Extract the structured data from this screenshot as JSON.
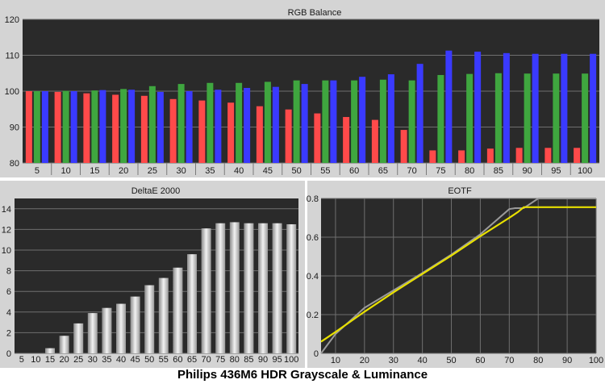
{
  "caption": "Philips 436M6 HDR Grayscale & Luminance",
  "colors": {
    "plot_bg": "#2a2a2a",
    "panel_bg": "#d4d4d4",
    "grid": "#6f6f6f",
    "red": "#ff4a4a",
    "green": "#3fa63f",
    "blue": "#3a3aff",
    "eotf_target": "#9a9a9a",
    "eotf_measured": "#e8e000"
  },
  "chart_data": [
    {
      "type": "bar",
      "title": "RGB Balance",
      "categories": [
        "5",
        "10",
        "15",
        "20",
        "25",
        "30",
        "35",
        "40",
        "45",
        "50",
        "55",
        "60",
        "65",
        "70",
        "75",
        "80",
        "85",
        "90",
        "95",
        "100"
      ],
      "ylim": [
        80,
        120
      ],
      "yticks": [
        80,
        90,
        100,
        110,
        120
      ],
      "series": [
        {
          "color": "red",
          "values": [
            100,
            99.8,
            99.4,
            99.0,
            98.7,
            97.8,
            97.4,
            96.8,
            95.8,
            94.9,
            93.8,
            92.8,
            92.0,
            89.2,
            83.5,
            83.5,
            84.0,
            84.2,
            84.2,
            84.2
          ]
        },
        {
          "color": "green",
          "values": [
            100,
            100.1,
            100.2,
            100.6,
            101.4,
            102.0,
            102.3,
            102.3,
            102.6,
            103.0,
            103.0,
            103.0,
            103.2,
            103.0,
            104.5,
            104.8,
            105.0,
            104.9,
            104.9,
            104.9
          ]
        },
        {
          "color": "blue",
          "values": [
            100,
            100.0,
            100.3,
            100.4,
            99.8,
            100.0,
            100.4,
            100.9,
            101.2,
            102.0,
            103.0,
            104.0,
            104.7,
            107.6,
            111.3,
            111.0,
            110.6,
            110.4,
            110.4,
            110.4
          ]
        }
      ]
    },
    {
      "type": "bar",
      "title": "DeltaE 2000",
      "categories": [
        "5",
        "10",
        "15",
        "20",
        "25",
        "30",
        "35",
        "40",
        "45",
        "50",
        "55",
        "60",
        "65",
        "70",
        "75",
        "80",
        "85",
        "90",
        "95",
        "100"
      ],
      "ylim": [
        0,
        15
      ],
      "yticks": [
        0,
        2,
        4,
        6,
        8,
        10,
        12,
        14
      ],
      "values": [
        0,
        0,
        0.5,
        1.7,
        2.9,
        3.9,
        4.4,
        4.8,
        5.5,
        6.6,
        7.3,
        8.3,
        9.6,
        12.1,
        12.6,
        12.7,
        12.6,
        12.6,
        12.6,
        12.5
      ]
    },
    {
      "type": "line",
      "title": "EOTF",
      "xlim": [
        5,
        100
      ],
      "ylim": [
        0,
        0.8
      ],
      "xticks": [
        10,
        20,
        30,
        40,
        50,
        60,
        70,
        80,
        90,
        100
      ],
      "yticks": [
        0,
        0.2,
        0.4,
        0.6,
        0.8
      ],
      "series": [
        {
          "color": "eotf_target",
          "x": [
            5,
            7,
            10,
            20,
            30,
            40,
            50,
            60,
            70,
            72,
            75,
            80,
            90,
            100
          ],
          "y": [
            0.0,
            0.04,
            0.1,
            0.235,
            0.325,
            0.415,
            0.51,
            0.615,
            0.745,
            0.75,
            0.75,
            0.8,
            0.8,
            0.8
          ]
        },
        {
          "color": "eotf_measured",
          "x": [
            5,
            10,
            20,
            30,
            40,
            50,
            60,
            70,
            73,
            75,
            80,
            90,
            100
          ],
          "y": [
            0.06,
            0.11,
            0.215,
            0.315,
            0.41,
            0.505,
            0.605,
            0.7,
            0.73,
            0.755,
            0.755,
            0.755,
            0.755
          ]
        }
      ]
    }
  ]
}
